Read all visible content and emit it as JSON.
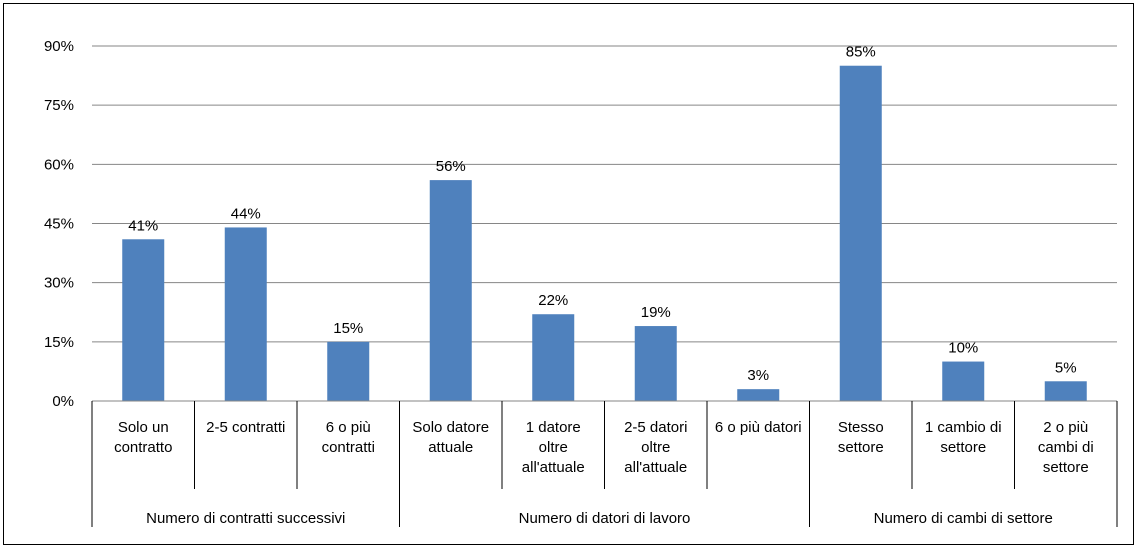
{
  "chart_data": {
    "type": "bar",
    "ylim": [
      0,
      90
    ],
    "yticks": [
      0,
      15,
      30,
      45,
      60,
      75,
      90
    ],
    "ytick_labels": [
      "0%",
      "15%",
      "30%",
      "45%",
      "60%",
      "75%",
      "90%"
    ],
    "grid": true,
    "bar_color": "#4F81BD",
    "categories": [
      [
        "Solo un",
        "contratto"
      ],
      [
        "2-5 contratti"
      ],
      [
        "6 o più",
        "contratti"
      ],
      [
        "Solo  datore",
        "attuale"
      ],
      [
        "1 datore",
        "oltre",
        "all'attuale"
      ],
      [
        "2-5 datori",
        "oltre",
        "all'attuale"
      ],
      [
        "6 o più datori"
      ],
      [
        "Stesso",
        "settore"
      ],
      [
        "1 cambio di",
        "settore"
      ],
      [
        "2 o più",
        "cambi di",
        "settore"
      ]
    ],
    "values": [
      41,
      44,
      15,
      56,
      22,
      19,
      3,
      85,
      10,
      5
    ],
    "data_labels": [
      "41%",
      "44%",
      "15%",
      "56%",
      "22%",
      "19%",
      "3%",
      "85%",
      "10%",
      "5%"
    ],
    "groups": [
      {
        "label": "Numero di contratti successivi",
        "start": 0,
        "count": 3
      },
      {
        "label": "Numero di datori di lavoro",
        "start": 3,
        "count": 4
      },
      {
        "label": "Numero di cambi di settore",
        "start": 7,
        "count": 3
      }
    ]
  }
}
